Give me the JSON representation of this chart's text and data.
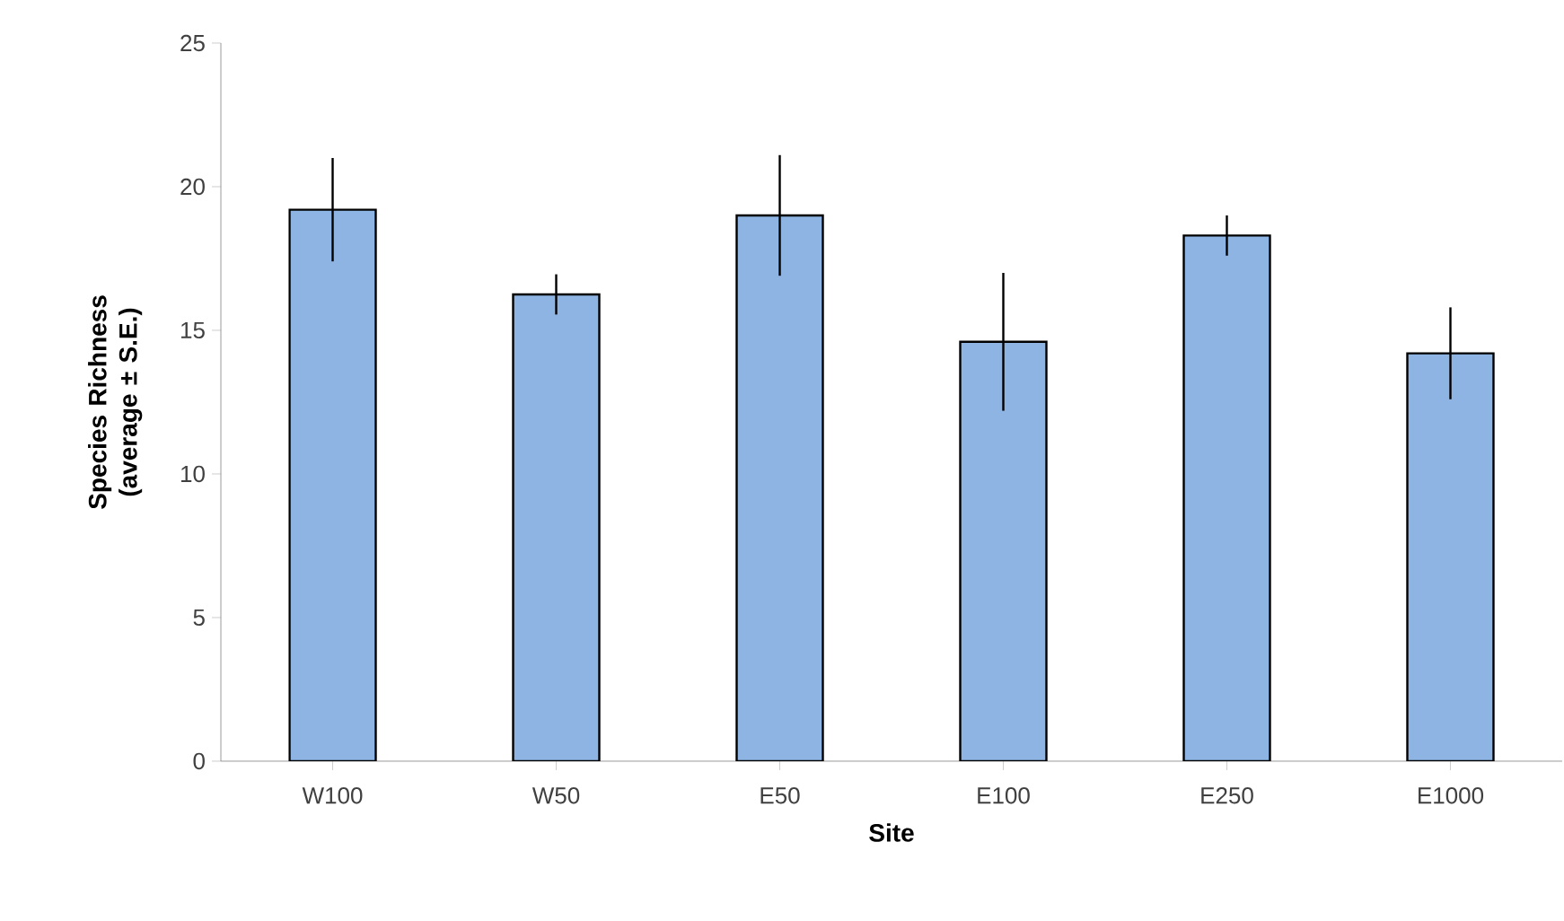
{
  "chart_data": {
    "type": "bar",
    "xlabel": "Site",
    "ylabel": "Species Richness (average ± S.E.)",
    "categories": [
      "W100",
      "W50",
      "E50",
      "E100",
      "E250",
      "E1000"
    ],
    "values": [
      19.2,
      16.25,
      19.0,
      14.6,
      18.3,
      14.2
    ],
    "errors": [
      1.8,
      0.7,
      2.1,
      2.4,
      0.7,
      1.6
    ],
    "color": "#8db4e2",
    "ylim": [
      0,
      25
    ],
    "yticks": [
      0,
      5,
      10,
      15,
      20,
      25
    ],
    "grid": false
  }
}
